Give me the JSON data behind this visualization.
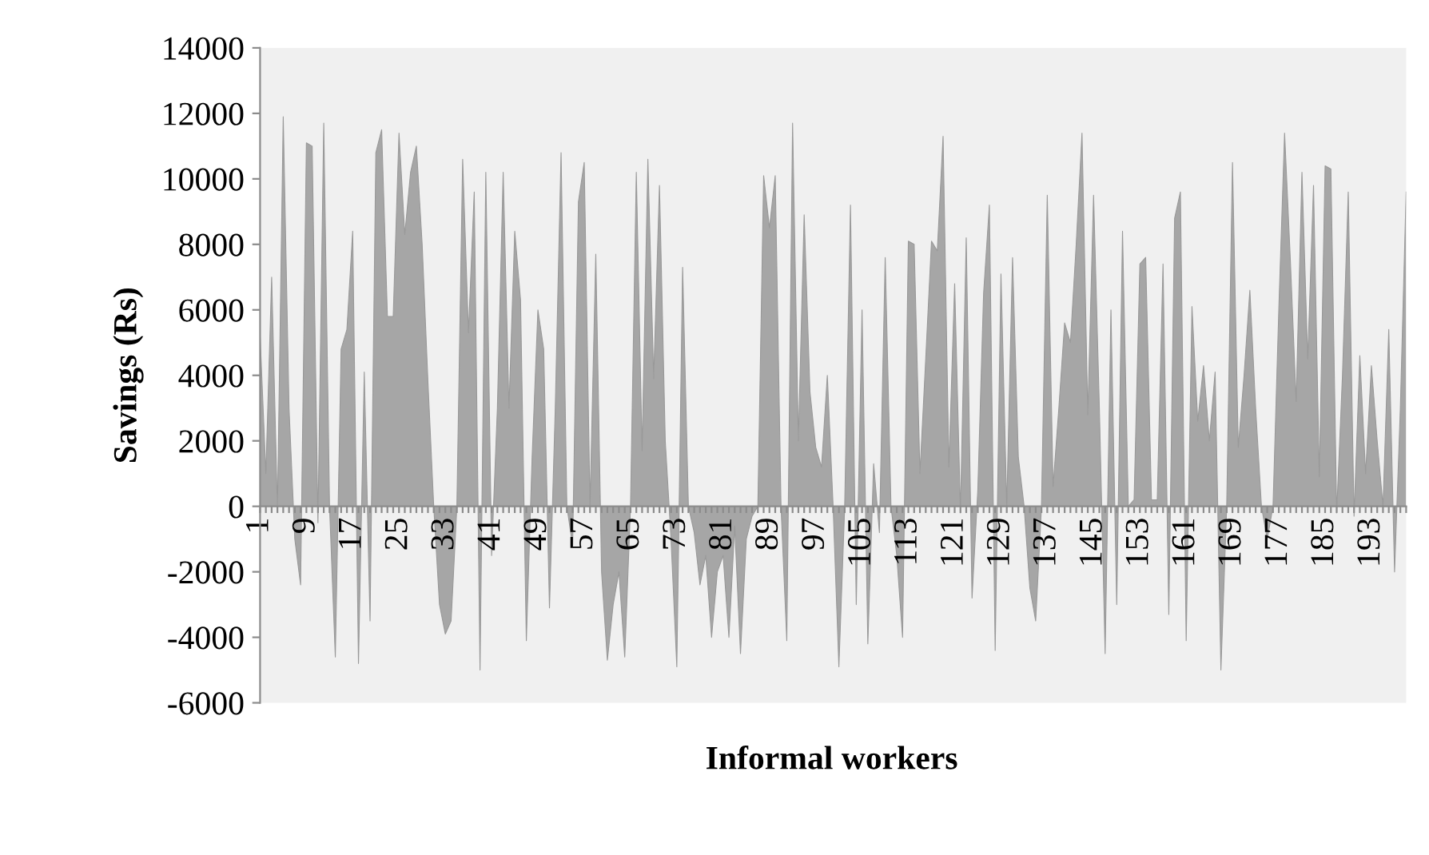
{
  "chart_data": {
    "type": "area",
    "xlabel": "Informal workers",
    "ylabel": "Savings (Rs)",
    "categories": [
      "1",
      null,
      null,
      null,
      null,
      null,
      null,
      null,
      "9",
      null,
      null,
      null,
      null,
      null,
      null,
      null,
      "17",
      null,
      null,
      null,
      null,
      null,
      null,
      null,
      "25",
      null,
      null,
      null,
      null,
      null,
      null,
      null,
      "33",
      null,
      null,
      null,
      null,
      null,
      null,
      null,
      "41",
      null,
      null,
      null,
      null,
      null,
      null,
      null,
      "49",
      null,
      null,
      null,
      null,
      null,
      null,
      null,
      "57",
      null,
      null,
      null,
      null,
      null,
      null,
      null,
      "65",
      null,
      null,
      null,
      null,
      null,
      null,
      null,
      "73",
      null,
      null,
      null,
      null,
      null,
      null,
      null,
      "81",
      null,
      null,
      null,
      null,
      null,
      null,
      null,
      "89",
      null,
      null,
      null,
      null,
      null,
      null,
      null,
      "97",
      null,
      null,
      null,
      null,
      null,
      null,
      null,
      "105",
      null,
      null,
      null,
      null,
      null,
      null,
      null,
      "113",
      null,
      null,
      null,
      null,
      null,
      null,
      null,
      "121",
      null,
      null,
      null,
      null,
      null,
      null,
      null,
      "129",
      null,
      null,
      null,
      null,
      null,
      null,
      null,
      "137",
      null,
      null,
      null,
      null,
      null,
      null,
      null,
      "145",
      null,
      null,
      null,
      null,
      null,
      null,
      null,
      "153",
      null,
      null,
      null,
      null,
      null,
      null,
      null,
      "161",
      null,
      null,
      null,
      null,
      null,
      null,
      null,
      "169",
      null,
      null,
      null,
      null,
      null,
      null,
      null,
      "177",
      null,
      null,
      null,
      null,
      null,
      null,
      null,
      "185",
      null,
      null,
      null,
      null,
      null,
      null,
      null,
      "193",
      null,
      null,
      null,
      null,
      null,
      null
    ],
    "series": [
      {
        "color": "#a6a6a6",
        "values": [
          5200,
          1000,
          7000,
          -100,
          11900,
          3000,
          -1000,
          -2400,
          11100,
          11000,
          -500,
          11700,
          0,
          -4600,
          4800,
          5400,
          8400,
          -4800,
          4100,
          -3500,
          10800,
          11500,
          5800,
          5800,
          11400,
          8300,
          10200,
          11000,
          8000,
          3800,
          0,
          -3000,
          -3900,
          -3500,
          0,
          10600,
          5300,
          9600,
          -5000,
          10200,
          -1500,
          3000,
          10200,
          3000,
          8400,
          6300,
          -4100,
          1500,
          6000,
          4800,
          -3100,
          3000,
          10800,
          0,
          -1200,
          9300,
          10500,
          0,
          7700,
          -2000,
          -4700,
          -3000,
          -2000,
          -4600,
          0,
          10200,
          1700,
          10600,
          3900,
          9800,
          2000,
          -1000,
          -4900,
          7300,
          0,
          -800,
          -2400,
          -1500,
          -4000,
          -2000,
          -1500,
          -4000,
          -600,
          -4500,
          -1000,
          -300,
          0,
          10100,
          8500,
          10100,
          0,
          -4100,
          11700,
          2000,
          8900,
          3500,
          1800,
          1200,
          4000,
          0,
          -4900,
          0,
          9200,
          -3000,
          6000,
          -4200,
          1300,
          -800,
          7600,
          0,
          -1500,
          -4000,
          8100,
          8000,
          1000,
          4500,
          8100,
          7800,
          11300,
          1200,
          6800,
          -200,
          8200,
          -2800,
          500,
          6500,
          9200,
          -4400,
          7100,
          0,
          7600,
          1500,
          0,
          -2500,
          -3500,
          0,
          9500,
          600,
          3000,
          5600,
          5000,
          8000,
          11400,
          2800,
          9500,
          3000,
          -4500,
          6000,
          -3000,
          8400,
          0,
          200,
          7400,
          7600,
          200,
          200,
          7400,
          -3300,
          8800,
          9600,
          -4100,
          6100,
          2600,
          4300,
          2000,
          4100,
          -5000,
          0,
          10500,
          1800,
          4000,
          6600,
          3000,
          0,
          -1000,
          0,
          6000,
          11400,
          7500,
          3200,
          10200,
          4500,
          9800,
          900,
          10400,
          10300,
          -200,
          4000,
          9600,
          -300,
          4600,
          1000,
          4300,
          2000,
          0,
          5400,
          -2000,
          3000,
          9600
        ]
      }
    ],
    "ylim": [
      -6000,
      14000
    ],
    "yticks": [
      -6000,
      -4000,
      -2000,
      0,
      2000,
      4000,
      6000,
      8000,
      10000,
      12000,
      14000
    ],
    "grid": false
  }
}
